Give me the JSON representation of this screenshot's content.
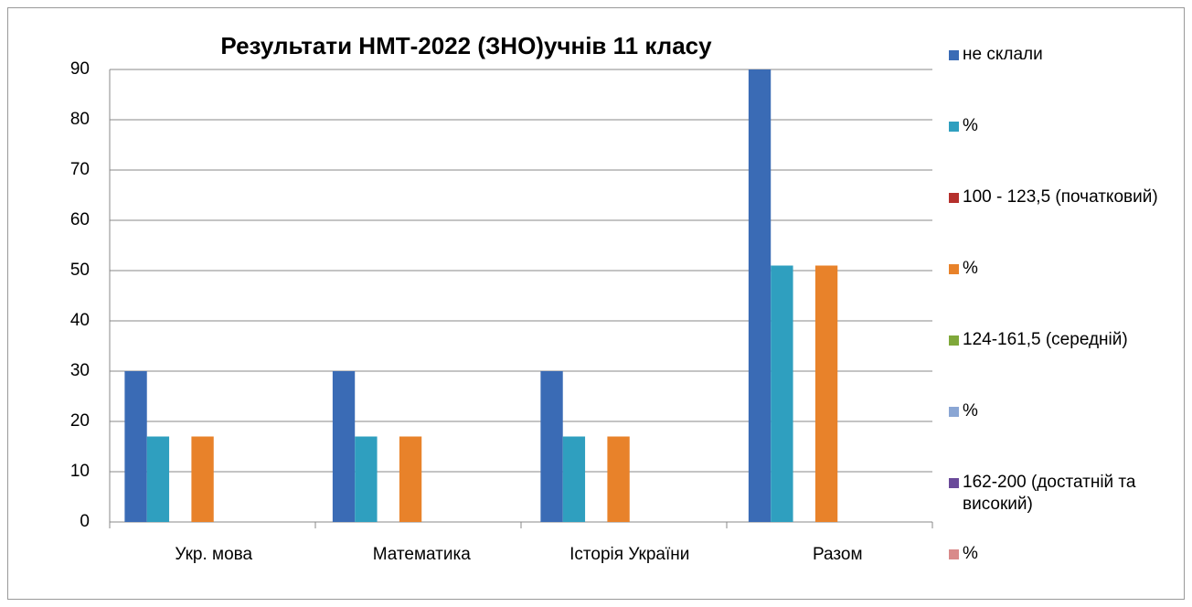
{
  "chart_data": {
    "type": "bar",
    "title": "Результати  НМТ-2022 (ЗНО)учнів 11 класу",
    "categories": [
      "Укр. мова",
      "Математика",
      "Історія України",
      "Разом"
    ],
    "series": [
      {
        "name": "не склали",
        "color": "#3a6bb5",
        "values": [
          30,
          30,
          30,
          90
        ]
      },
      {
        "name": "%",
        "color": "#2f9fbf",
        "values": [
          17,
          17,
          17,
          51
        ]
      },
      {
        "name": "100 - 123,5 (початковий)",
        "color": "#b5302c",
        "values": [
          0,
          0,
          0,
          0
        ]
      },
      {
        "name": "%",
        "color": "#e8822a",
        "values": [
          17,
          17,
          17,
          51
        ]
      },
      {
        "name": "124-161,5 (середній)",
        "color": "#7fa83a",
        "values": [
          0,
          0,
          0,
          0
        ]
      },
      {
        "name": "%",
        "color": "#8aa6d4",
        "values": [
          0,
          0,
          0,
          0
        ]
      },
      {
        "name": "162-200 (достатній та високий)",
        "color": "#6a4a9a",
        "values": [
          0,
          0,
          0,
          0
        ]
      },
      {
        "name": "%",
        "color": "#d98a8a",
        "values": [
          0,
          0,
          0,
          0
        ]
      }
    ],
    "ylim": [
      0,
      90
    ],
    "yticks": [
      0,
      10,
      20,
      30,
      40,
      50,
      60,
      70,
      80,
      90
    ],
    "grid": true,
    "legend": "right"
  }
}
